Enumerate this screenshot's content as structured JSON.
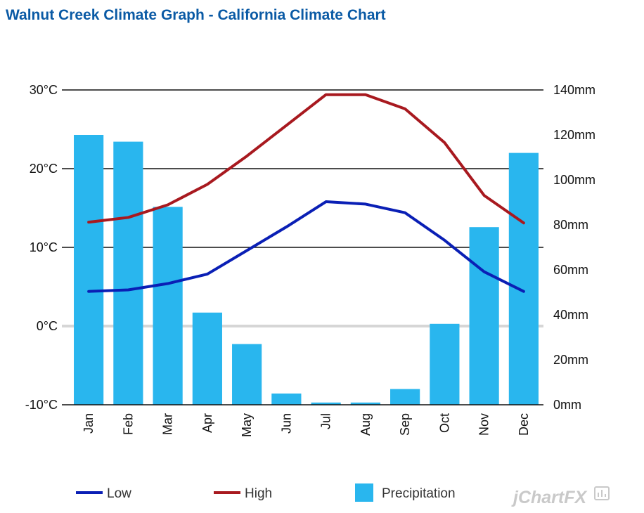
{
  "page": {
    "title": "Walnut Creek Climate Graph - California Climate Chart"
  },
  "chart_data": {
    "type": "bar+line",
    "title": "Walnut Creek Climate Graph - California Climate Chart",
    "categories": [
      "Jan",
      "Feb",
      "Mar",
      "Apr",
      "May",
      "Jun",
      "Jul",
      "Aug",
      "Sep",
      "Oct",
      "Nov",
      "Dec"
    ],
    "series": [
      {
        "name": "Low",
        "type": "line",
        "axis": "left",
        "color": "#0a1fb5",
        "values": [
          4.4,
          4.6,
          5.4,
          6.6,
          9.6,
          12.6,
          15.8,
          15.5,
          14.4,
          10.9,
          6.9,
          4.4
        ]
      },
      {
        "name": "High",
        "type": "line",
        "axis": "left",
        "color": "#a8191f",
        "values": [
          13.2,
          13.8,
          15.4,
          18.0,
          21.6,
          25.5,
          29.4,
          29.4,
          27.6,
          23.3,
          16.6,
          13.1
        ]
      },
      {
        "name": "Precipitation",
        "type": "bar",
        "axis": "right",
        "color": "#29b6ee",
        "values": [
          120,
          117,
          88,
          41,
          27,
          5,
          1,
          1,
          7,
          36,
          79,
          112
        ]
      }
    ],
    "left_axis": {
      "min": -10,
      "max": 30,
      "ticks": [
        -10,
        0,
        10,
        20,
        30
      ],
      "tick_labels": [
        "-10°C",
        "0°C",
        "10°C",
        "20°C",
        "30°C"
      ]
    },
    "right_axis": {
      "min": 0,
      "max": 140,
      "ticks": [
        0,
        20,
        40,
        60,
        80,
        100,
        120,
        140
      ],
      "tick_labels": [
        "0mm",
        "20mm",
        "40mm",
        "60mm",
        "80mm",
        "100mm",
        "120mm",
        "140mm"
      ]
    },
    "grid": true,
    "legend": {
      "position": "bottom",
      "items": [
        "Low",
        "High",
        "Precipitation"
      ]
    },
    "branding": "jChartFX"
  }
}
